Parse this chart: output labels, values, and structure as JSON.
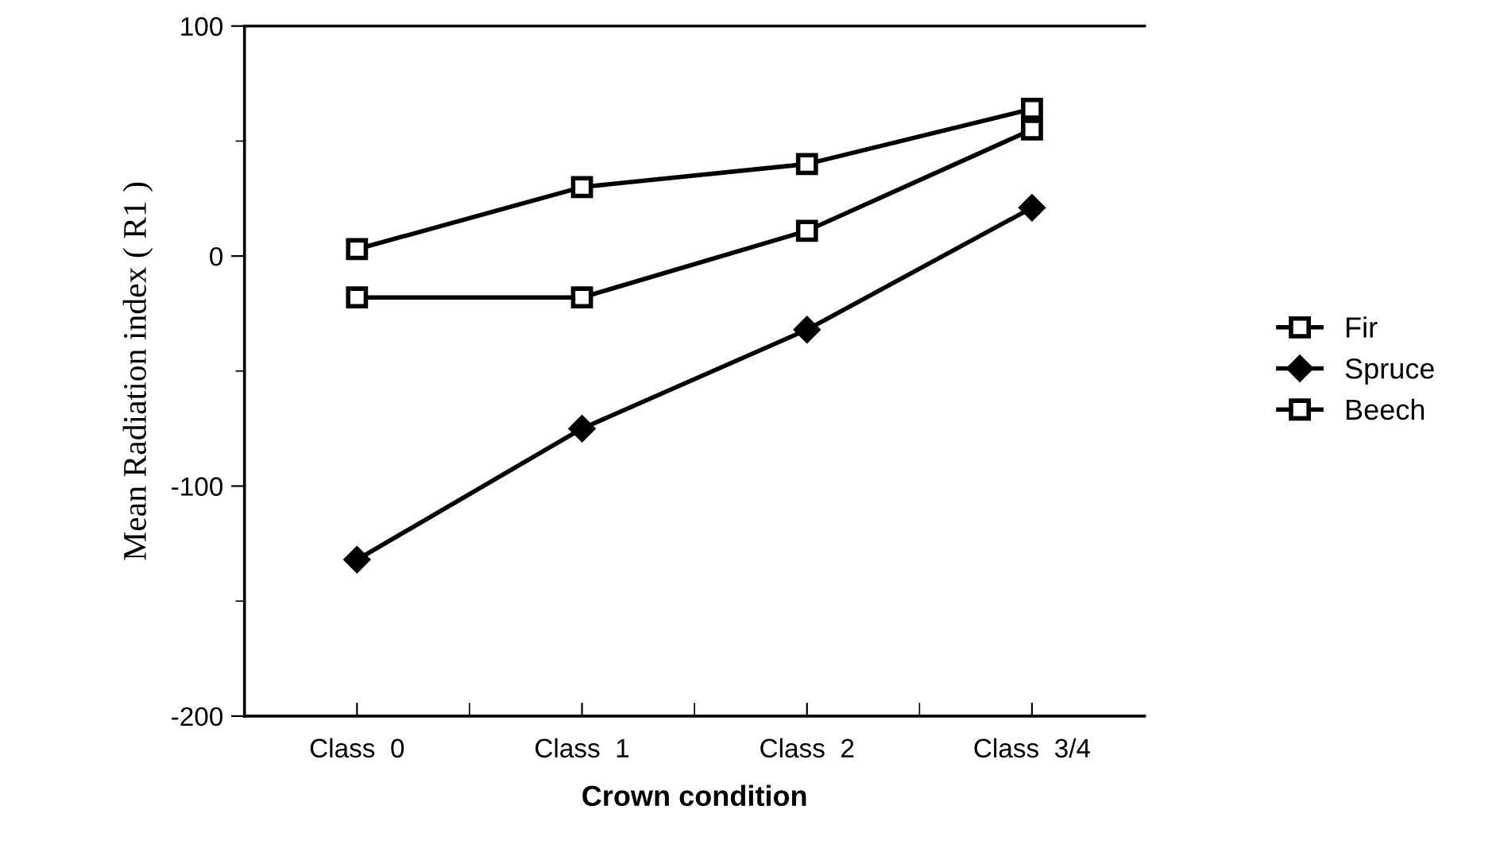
{
  "chart_data": {
    "type": "line",
    "xlabel": "Crown condition",
    "ylabel": "Mean Radiation index ( R1 )",
    "categories": [
      "Class  0",
      "Class  1",
      "Class  2",
      "Class  3/4"
    ],
    "series": [
      {
        "name": "Fir",
        "color": "#000000",
        "marker": "square",
        "values": [
          -18,
          -18,
          11,
          55
        ]
      },
      {
        "name": "Spruce",
        "color": "#000000",
        "marker": "diamond",
        "values": [
          -132,
          -75,
          -32,
          21
        ]
      },
      {
        "name": "Beech",
        "color": "#000000",
        "marker": "square",
        "values": [
          3,
          30,
          40,
          64
        ]
      }
    ],
    "ylim": [
      -200,
      100
    ],
    "yticks": [
      -200,
      -100,
      0,
      100
    ],
    "grid": false,
    "legend": "right",
    "line_style": "solid"
  }
}
